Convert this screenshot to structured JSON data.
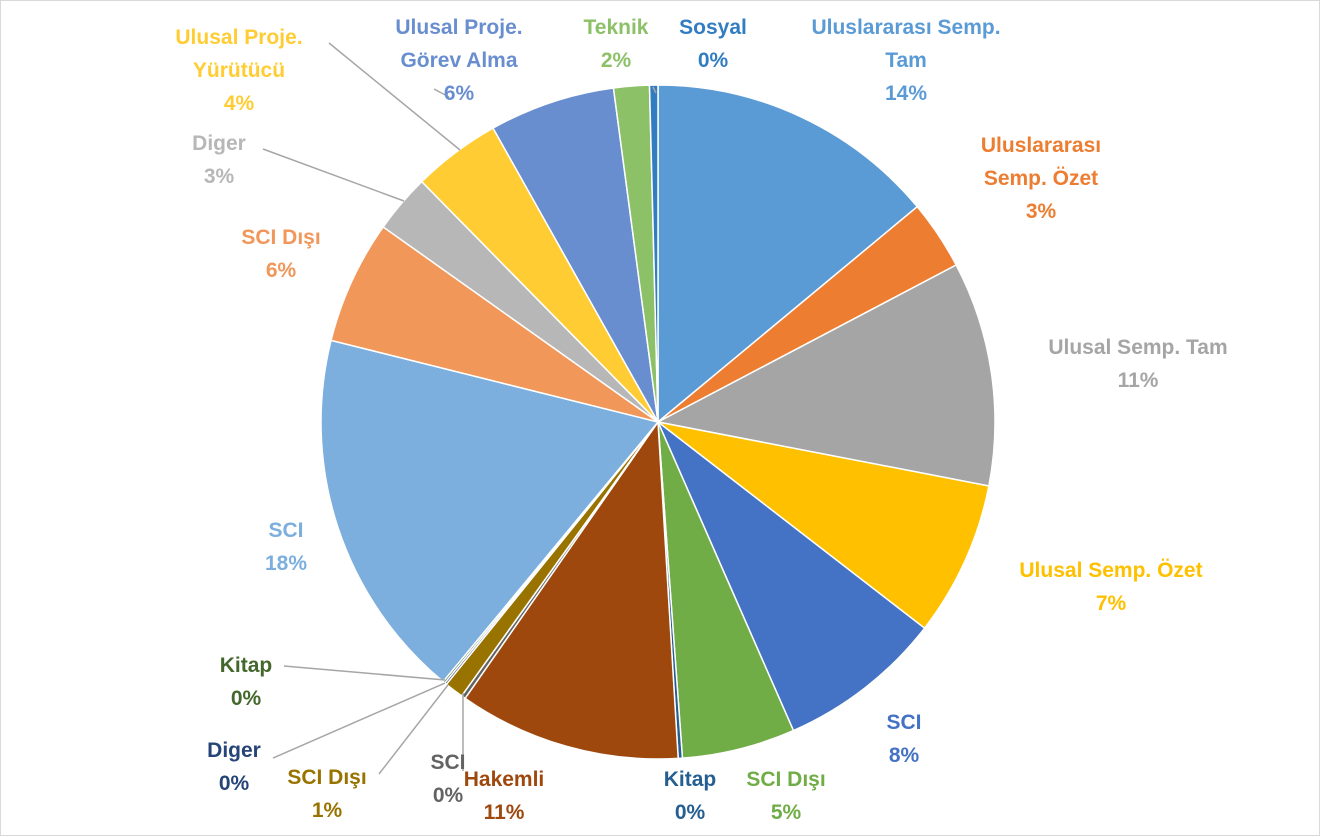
{
  "chart_data": {
    "type": "pie",
    "categories": [
      "Uluslararası Semp. Tam",
      "Uluslararası Semp. Özet",
      "Ulusal Semp. Tam",
      "Ulusal Semp. Özet",
      "SCI",
      "SCI Dışı",
      "Kitap",
      "Hakemli",
      "SCI",
      "SCI Dışı",
      "Diger",
      "Kitap",
      "SCI",
      "SCI Dışı",
      "Diger",
      "Ulusal Proje. Yürütücü",
      "Ulusal Proje. Görev Alma",
      "Teknik",
      "Sosyal"
    ],
    "values": [
      13.9,
      3.3,
      10.7,
      7.4,
      7.9,
      5.4,
      0.2,
      10.6,
      0.2,
      0.9,
      0.1,
      0.1,
      17.8,
      5.9,
      2.8,
      4.2,
      6.0,
      1.7,
      0.4
    ],
    "value_labels": [
      "14%",
      "3%",
      "11%",
      "7%",
      "8%",
      "5%",
      "0%",
      "11%",
      "0%",
      "1%",
      "0%",
      "0%",
      "18%",
      "6%",
      "3%",
      "4%",
      "6%",
      "2%",
      "0%"
    ],
    "colors": [
      "#5b9bd5",
      "#ed7d31",
      "#a5a5a5",
      "#ffc000",
      "#4472c4",
      "#70ad47",
      "#255e91",
      "#9e480e",
      "#636363",
      "#997300",
      "#264478",
      "#43682b",
      "#7cafdd",
      "#f1975a",
      "#b7b7b7",
      "#ffcd33",
      "#698ed0",
      "#8cc168",
      "#327dc2"
    ]
  }
}
